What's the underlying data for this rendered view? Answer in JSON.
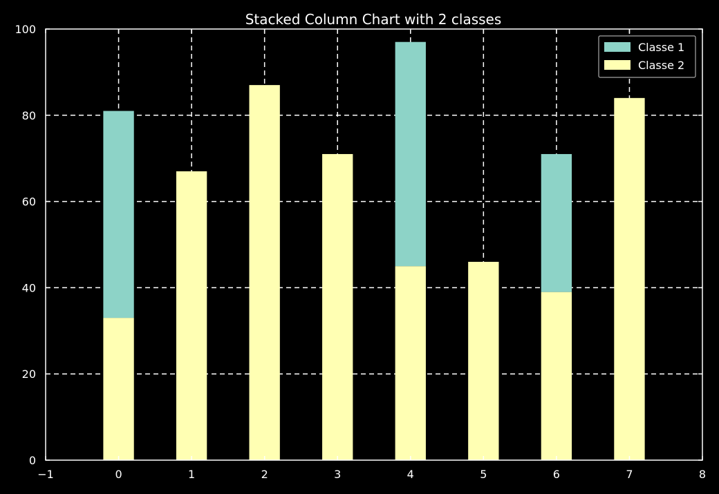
{
  "chart_data": {
    "type": "bar",
    "stacked": true,
    "title": "Stacked Column Chart with 2 classes",
    "xlabel": "",
    "ylabel": "",
    "x": [
      0,
      1,
      2,
      3,
      4,
      5,
      6,
      7
    ],
    "series": [
      {
        "name": "Classe 2",
        "color": "#ffffb3",
        "values": [
          33,
          67,
          87,
          71,
          45,
          46,
          39,
          84
        ]
      },
      {
        "name": "Classe 1",
        "color": "#8dd3c7",
        "values": [
          48,
          0,
          0,
          0,
          52,
          0,
          32,
          0
        ]
      }
    ],
    "legend_order": [
      "Classe 1",
      "Classe 2"
    ],
    "xlim": [
      -1,
      8
    ],
    "ylim": [
      0,
      100
    ],
    "xticks": [
      -1,
      0,
      1,
      2,
      3,
      4,
      5,
      6,
      7,
      8
    ],
    "yticks": [
      0,
      20,
      40,
      60,
      80,
      100
    ],
    "grid": true,
    "legend_position": "top-right",
    "background_color": "#000000",
    "axis_color": "#ffffff"
  }
}
